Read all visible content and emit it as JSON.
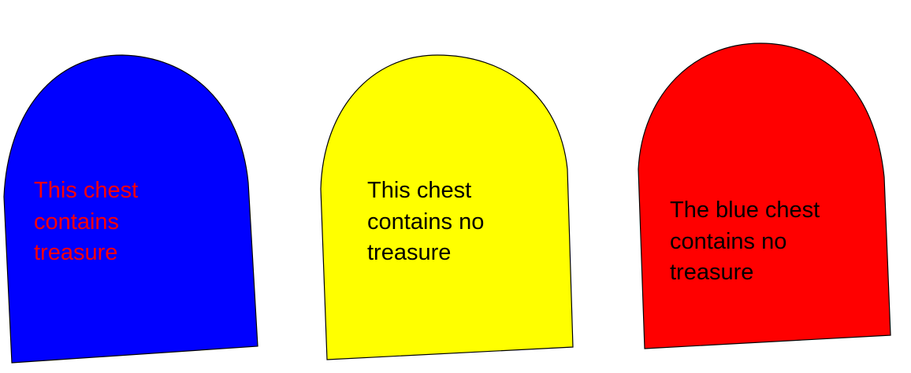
{
  "chests": [
    {
      "fill": "#0000ff",
      "text_color": "#ff0000",
      "lines": [
        "This chest",
        "contains",
        "treasure"
      ]
    },
    {
      "fill": "#ffff00",
      "text_color": "#000000",
      "lines": [
        "This chest",
        "contains no",
        "treasure"
      ]
    },
    {
      "fill": "#ff0000",
      "text_color": "#000000",
      "lines": [
        "The blue chest",
        "contains no",
        "treasure"
      ]
    }
  ]
}
